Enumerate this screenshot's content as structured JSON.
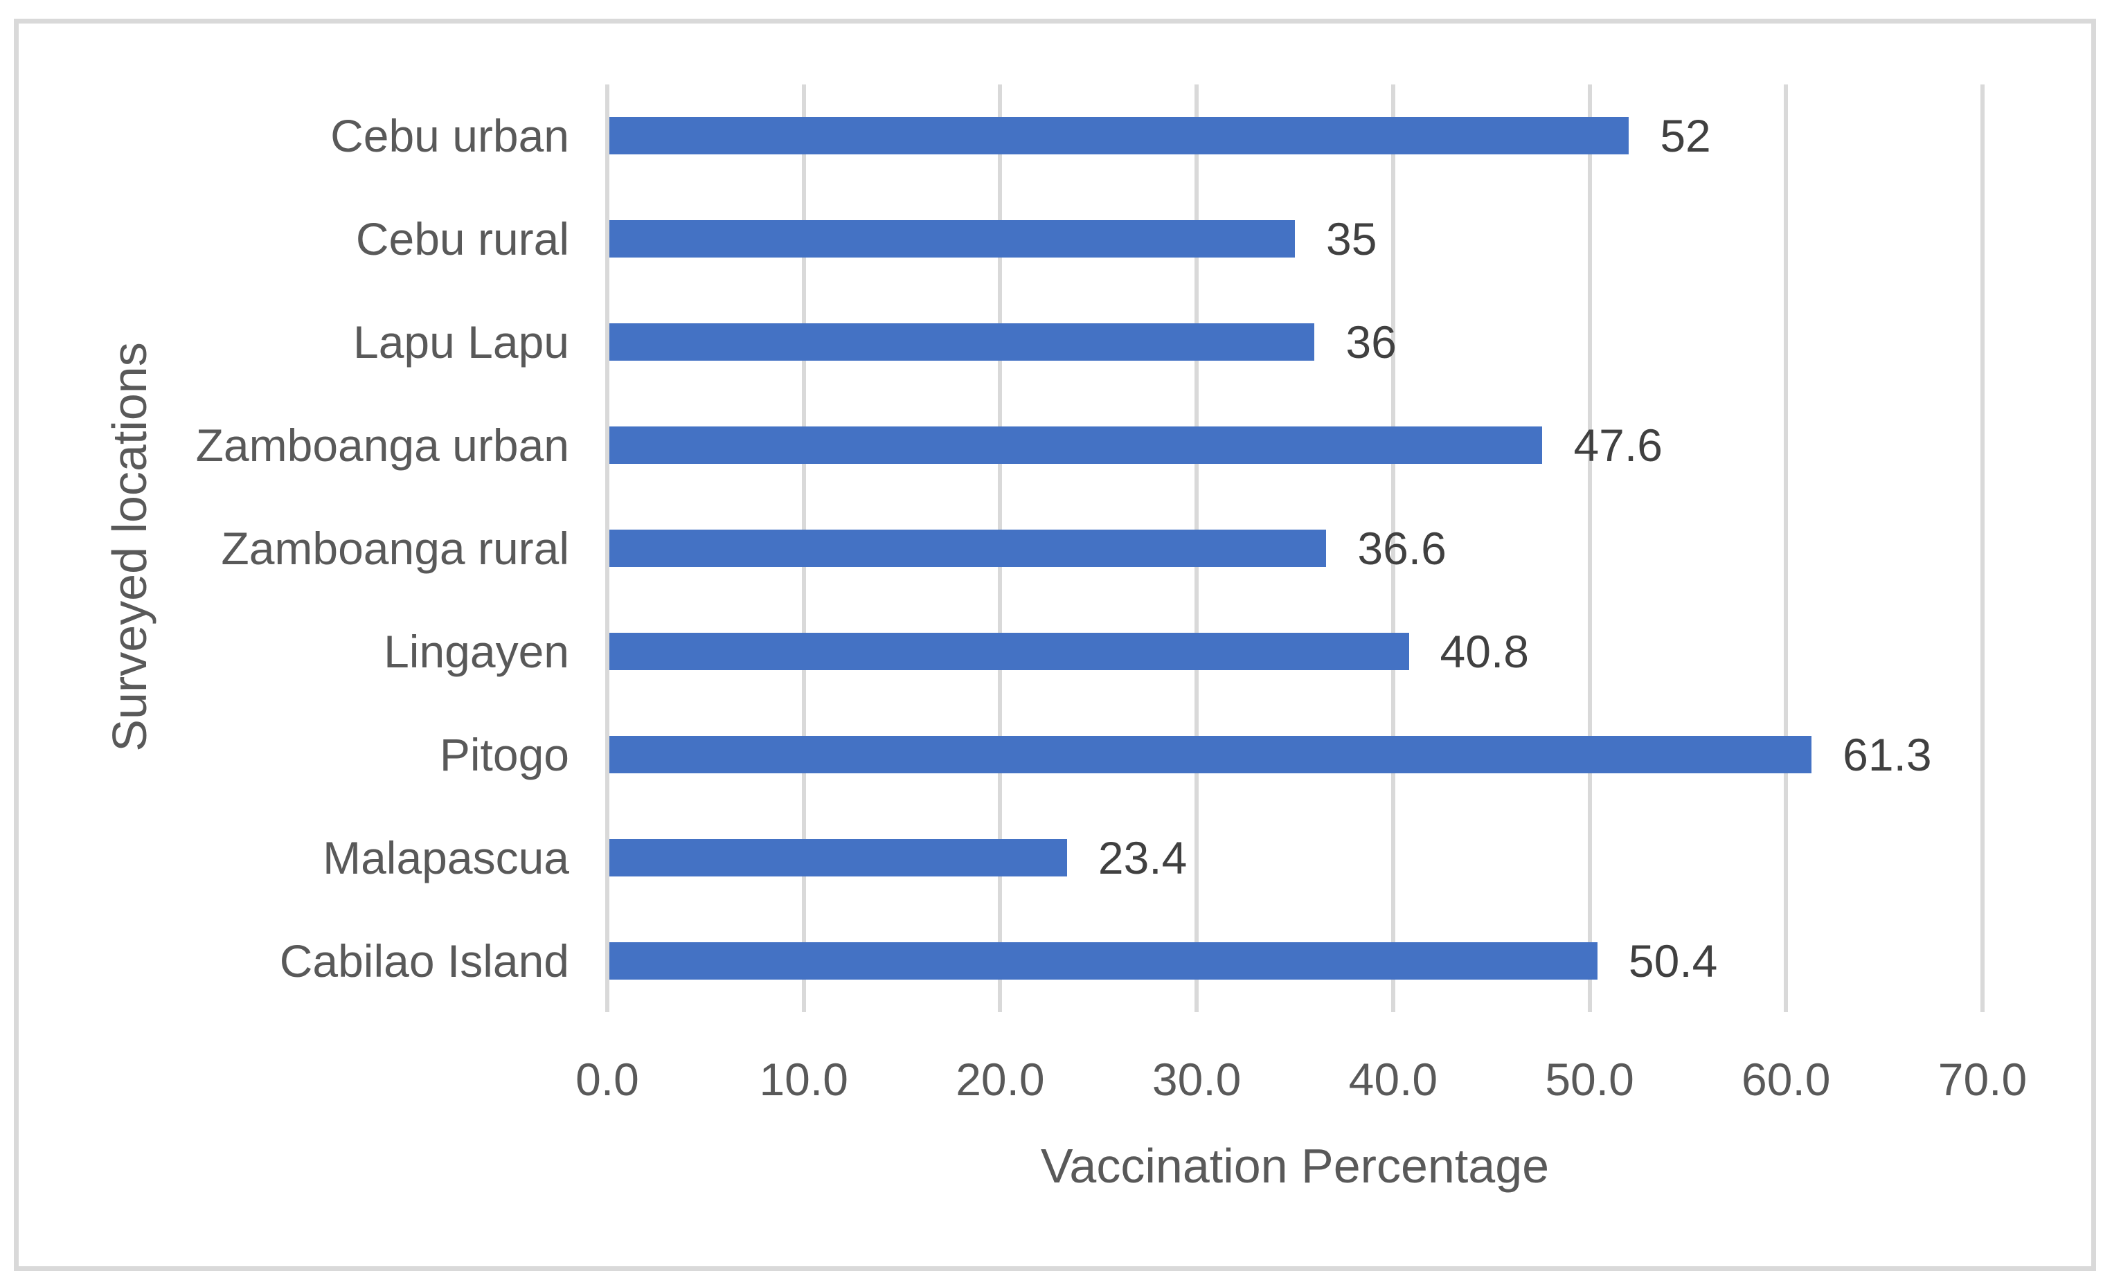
{
  "chart_data": {
    "type": "bar",
    "orientation": "horizontal",
    "title": "",
    "xlabel": "Vaccination Percentage",
    "ylabel": "Surveyed locations",
    "categories": [
      "Cebu urban",
      "Cebu rural",
      "Lapu Lapu",
      "Zamboanga urban",
      "Zamboanga rural",
      "Lingayen",
      "Pitogo",
      "Malapascua",
      "Cabilao Island"
    ],
    "values": [
      52,
      35,
      36,
      47.6,
      36.6,
      40.8,
      61.3,
      23.4,
      50.4
    ],
    "data_labels": [
      "52",
      "35",
      "36",
      "47.6",
      "36.6",
      "40.8",
      "61.3",
      "23.4",
      "50.4"
    ],
    "xlim": [
      0,
      70
    ],
    "xticks": [
      0,
      10,
      20,
      30,
      40,
      50,
      60,
      70
    ],
    "xtick_labels": [
      "0.0",
      "10.0",
      "20.0",
      "30.0",
      "40.0",
      "50.0",
      "60.0",
      "70.0"
    ],
    "grid": "vertical-gridlines-on",
    "legend": "none",
    "colors": {
      "bar": "#4472C4",
      "gridline": "#d9d9d9",
      "frame_border": "#d9d9d9",
      "axis_text": "#595959",
      "data_label_text": "#404040"
    }
  }
}
